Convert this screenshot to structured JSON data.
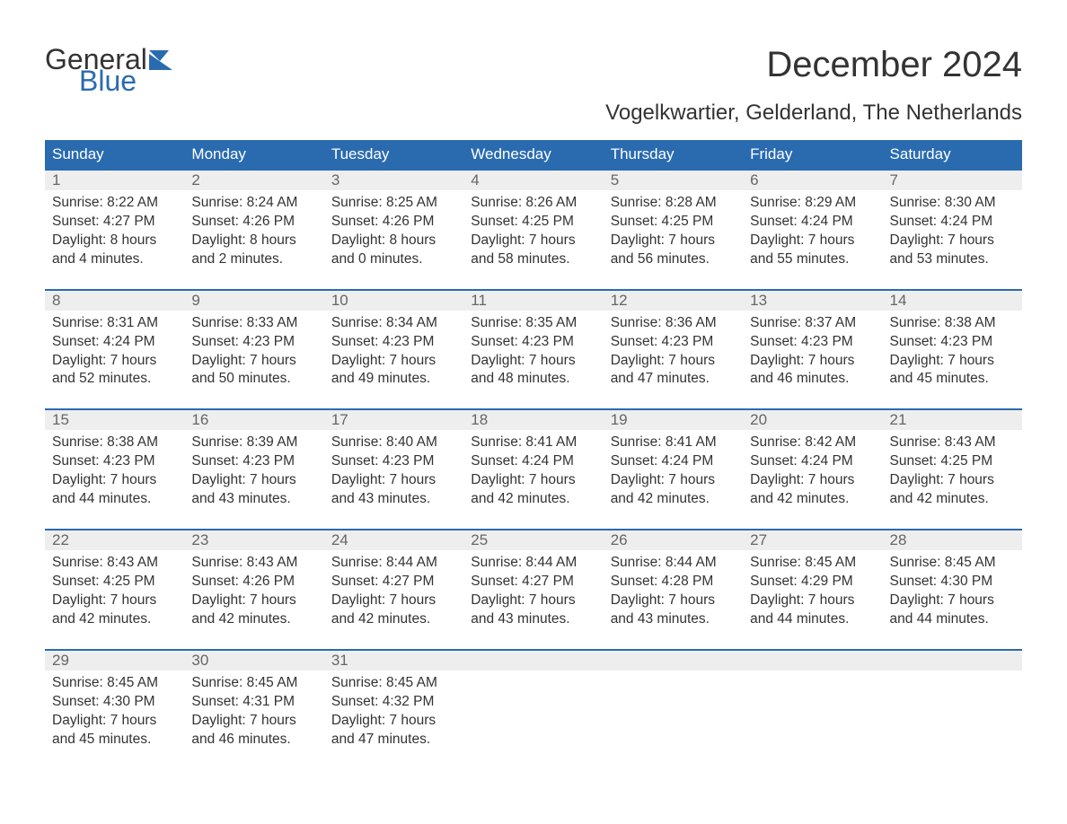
{
  "brand": {
    "general": "General",
    "blue": "Blue",
    "flag_color": "#2a6bb0"
  },
  "title": "December 2024",
  "location": "Vogelkwartier, Gelderland, The Netherlands",
  "weekdays": [
    "Sunday",
    "Monday",
    "Tuesday",
    "Wednesday",
    "Thursday",
    "Friday",
    "Saturday"
  ],
  "colors": {
    "header_bg": "#2a6bb0",
    "header_text": "#ffffff",
    "daynum_bg": "#eeeeee",
    "daynum_border": "#2a6bb0",
    "daynum_text": "#666666",
    "body_text": "#333333",
    "page_bg": "#ffffff"
  },
  "typography": {
    "title_fontsize": 40,
    "location_fontsize": 24,
    "weekday_fontsize": 17,
    "daynum_fontsize": 17,
    "info_fontsize": 15.5
  },
  "weeks": [
    [
      {
        "day": "1",
        "sunrise": "Sunrise: 8:22 AM",
        "sunset": "Sunset: 4:27 PM",
        "daylight1": "Daylight: 8 hours",
        "daylight2": "and 4 minutes."
      },
      {
        "day": "2",
        "sunrise": "Sunrise: 8:24 AM",
        "sunset": "Sunset: 4:26 PM",
        "daylight1": "Daylight: 8 hours",
        "daylight2": "and 2 minutes."
      },
      {
        "day": "3",
        "sunrise": "Sunrise: 8:25 AM",
        "sunset": "Sunset: 4:26 PM",
        "daylight1": "Daylight: 8 hours",
        "daylight2": "and 0 minutes."
      },
      {
        "day": "4",
        "sunrise": "Sunrise: 8:26 AM",
        "sunset": "Sunset: 4:25 PM",
        "daylight1": "Daylight: 7 hours",
        "daylight2": "and 58 minutes."
      },
      {
        "day": "5",
        "sunrise": "Sunrise: 8:28 AM",
        "sunset": "Sunset: 4:25 PM",
        "daylight1": "Daylight: 7 hours",
        "daylight2": "and 56 minutes."
      },
      {
        "day": "6",
        "sunrise": "Sunrise: 8:29 AM",
        "sunset": "Sunset: 4:24 PM",
        "daylight1": "Daylight: 7 hours",
        "daylight2": "and 55 minutes."
      },
      {
        "day": "7",
        "sunrise": "Sunrise: 8:30 AM",
        "sunset": "Sunset: 4:24 PM",
        "daylight1": "Daylight: 7 hours",
        "daylight2": "and 53 minutes."
      }
    ],
    [
      {
        "day": "8",
        "sunrise": "Sunrise: 8:31 AM",
        "sunset": "Sunset: 4:24 PM",
        "daylight1": "Daylight: 7 hours",
        "daylight2": "and 52 minutes."
      },
      {
        "day": "9",
        "sunrise": "Sunrise: 8:33 AM",
        "sunset": "Sunset: 4:23 PM",
        "daylight1": "Daylight: 7 hours",
        "daylight2": "and 50 minutes."
      },
      {
        "day": "10",
        "sunrise": "Sunrise: 8:34 AM",
        "sunset": "Sunset: 4:23 PM",
        "daylight1": "Daylight: 7 hours",
        "daylight2": "and 49 minutes."
      },
      {
        "day": "11",
        "sunrise": "Sunrise: 8:35 AM",
        "sunset": "Sunset: 4:23 PM",
        "daylight1": "Daylight: 7 hours",
        "daylight2": "and 48 minutes."
      },
      {
        "day": "12",
        "sunrise": "Sunrise: 8:36 AM",
        "sunset": "Sunset: 4:23 PM",
        "daylight1": "Daylight: 7 hours",
        "daylight2": "and 47 minutes."
      },
      {
        "day": "13",
        "sunrise": "Sunrise: 8:37 AM",
        "sunset": "Sunset: 4:23 PM",
        "daylight1": "Daylight: 7 hours",
        "daylight2": "and 46 minutes."
      },
      {
        "day": "14",
        "sunrise": "Sunrise: 8:38 AM",
        "sunset": "Sunset: 4:23 PM",
        "daylight1": "Daylight: 7 hours",
        "daylight2": "and 45 minutes."
      }
    ],
    [
      {
        "day": "15",
        "sunrise": "Sunrise: 8:38 AM",
        "sunset": "Sunset: 4:23 PM",
        "daylight1": "Daylight: 7 hours",
        "daylight2": "and 44 minutes."
      },
      {
        "day": "16",
        "sunrise": "Sunrise: 8:39 AM",
        "sunset": "Sunset: 4:23 PM",
        "daylight1": "Daylight: 7 hours",
        "daylight2": "and 43 minutes."
      },
      {
        "day": "17",
        "sunrise": "Sunrise: 8:40 AM",
        "sunset": "Sunset: 4:23 PM",
        "daylight1": "Daylight: 7 hours",
        "daylight2": "and 43 minutes."
      },
      {
        "day": "18",
        "sunrise": "Sunrise: 8:41 AM",
        "sunset": "Sunset: 4:24 PM",
        "daylight1": "Daylight: 7 hours",
        "daylight2": "and 42 minutes."
      },
      {
        "day": "19",
        "sunrise": "Sunrise: 8:41 AM",
        "sunset": "Sunset: 4:24 PM",
        "daylight1": "Daylight: 7 hours",
        "daylight2": "and 42 minutes."
      },
      {
        "day": "20",
        "sunrise": "Sunrise: 8:42 AM",
        "sunset": "Sunset: 4:24 PM",
        "daylight1": "Daylight: 7 hours",
        "daylight2": "and 42 minutes."
      },
      {
        "day": "21",
        "sunrise": "Sunrise: 8:43 AM",
        "sunset": "Sunset: 4:25 PM",
        "daylight1": "Daylight: 7 hours",
        "daylight2": "and 42 minutes."
      }
    ],
    [
      {
        "day": "22",
        "sunrise": "Sunrise: 8:43 AM",
        "sunset": "Sunset: 4:25 PM",
        "daylight1": "Daylight: 7 hours",
        "daylight2": "and 42 minutes."
      },
      {
        "day": "23",
        "sunrise": "Sunrise: 8:43 AM",
        "sunset": "Sunset: 4:26 PM",
        "daylight1": "Daylight: 7 hours",
        "daylight2": "and 42 minutes."
      },
      {
        "day": "24",
        "sunrise": "Sunrise: 8:44 AM",
        "sunset": "Sunset: 4:27 PM",
        "daylight1": "Daylight: 7 hours",
        "daylight2": "and 42 minutes."
      },
      {
        "day": "25",
        "sunrise": "Sunrise: 8:44 AM",
        "sunset": "Sunset: 4:27 PM",
        "daylight1": "Daylight: 7 hours",
        "daylight2": "and 43 minutes."
      },
      {
        "day": "26",
        "sunrise": "Sunrise: 8:44 AM",
        "sunset": "Sunset: 4:28 PM",
        "daylight1": "Daylight: 7 hours",
        "daylight2": "and 43 minutes."
      },
      {
        "day": "27",
        "sunrise": "Sunrise: 8:45 AM",
        "sunset": "Sunset: 4:29 PM",
        "daylight1": "Daylight: 7 hours",
        "daylight2": "and 44 minutes."
      },
      {
        "day": "28",
        "sunrise": "Sunrise: 8:45 AM",
        "sunset": "Sunset: 4:30 PM",
        "daylight1": "Daylight: 7 hours",
        "daylight2": "and 44 minutes."
      }
    ],
    [
      {
        "day": "29",
        "sunrise": "Sunrise: 8:45 AM",
        "sunset": "Sunset: 4:30 PM",
        "daylight1": "Daylight: 7 hours",
        "daylight2": "and 45 minutes."
      },
      {
        "day": "30",
        "sunrise": "Sunrise: 8:45 AM",
        "sunset": "Sunset: 4:31 PM",
        "daylight1": "Daylight: 7 hours",
        "daylight2": "and 46 minutes."
      },
      {
        "day": "31",
        "sunrise": "Sunrise: 8:45 AM",
        "sunset": "Sunset: 4:32 PM",
        "daylight1": "Daylight: 7 hours",
        "daylight2": "and 47 minutes."
      },
      null,
      null,
      null,
      null
    ]
  ]
}
